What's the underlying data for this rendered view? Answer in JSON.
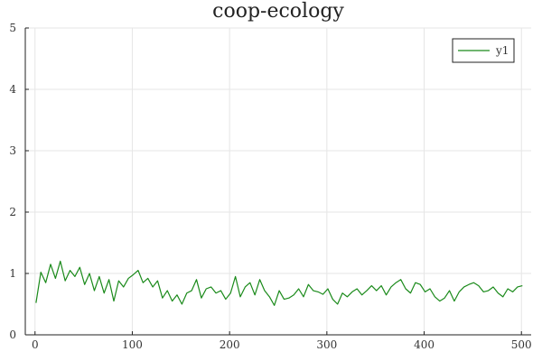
{
  "chart_data": {
    "type": "line",
    "title": "coop-ecology",
    "xlabel": "",
    "ylabel": "",
    "xlim": [
      -10,
      510
    ],
    "ylim": [
      0,
      5
    ],
    "x_ticks": [
      0,
      100,
      200,
      300,
      400,
      500
    ],
    "y_ticks": [
      0,
      1,
      2,
      3,
      4,
      5
    ],
    "grid": true,
    "legend_position": "top-right",
    "series": [
      {
        "name": "y1",
        "color": "#1a8a1a",
        "x_start": 1,
        "x_step": 5,
        "values": [
          0.52,
          1.02,
          0.85,
          1.15,
          0.92,
          1.2,
          0.88,
          1.05,
          0.95,
          1.1,
          0.82,
          1.0,
          0.72,
          0.95,
          0.68,
          0.9,
          0.55,
          0.88,
          0.78,
          0.92,
          0.98,
          1.05,
          0.85,
          0.92,
          0.78,
          0.88,
          0.6,
          0.72,
          0.55,
          0.65,
          0.5,
          0.68,
          0.72,
          0.9,
          0.6,
          0.75,
          0.78,
          0.68,
          0.72,
          0.58,
          0.68,
          0.95,
          0.62,
          0.78,
          0.85,
          0.65,
          0.9,
          0.72,
          0.62,
          0.48,
          0.72,
          0.58,
          0.6,
          0.65,
          0.75,
          0.62,
          0.82,
          0.72,
          0.7,
          0.66,
          0.75,
          0.58,
          0.5,
          0.68,
          0.62,
          0.7,
          0.75,
          0.65,
          0.72,
          0.8,
          0.72,
          0.8,
          0.65,
          0.78,
          0.85,
          0.9,
          0.75,
          0.68,
          0.85,
          0.82,
          0.7,
          0.75,
          0.62,
          0.55,
          0.6,
          0.72,
          0.55,
          0.7,
          0.78,
          0.82,
          0.85,
          0.8,
          0.7,
          0.72,
          0.78,
          0.68,
          0.62,
          0.75,
          0.7,
          0.78,
          0.8
        ]
      }
    ]
  }
}
